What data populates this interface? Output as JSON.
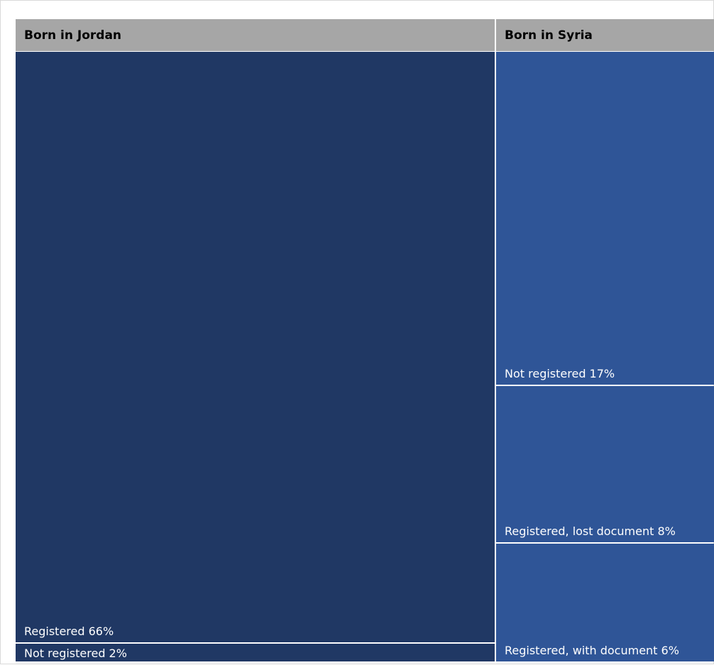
{
  "chart_data": {
    "type": "treemap",
    "colors": {
      "header_bg": "#a6a6a6",
      "header_text": "#000000",
      "born_in_jordan": "#203864",
      "born_in_syria": "#2f5597",
      "label_text": "#ffffff",
      "separator": "#ffffff"
    },
    "groups": [
      {
        "name": "Born in Jordan",
        "color_key": "born_in_jordan",
        "children": [
          {
            "label": "Registered 66%",
            "value": 66
          },
          {
            "label": "Not registered 2%",
            "value": 2
          }
        ]
      },
      {
        "name": "Born in Syria",
        "color_key": "born_in_syria",
        "children": [
          {
            "label": "Not registered 17%",
            "value": 17
          },
          {
            "label": "Registered, lost document 8%",
            "value": 8
          },
          {
            "label": "Registered, with document 6%",
            "value": 6
          }
        ]
      }
    ]
  }
}
